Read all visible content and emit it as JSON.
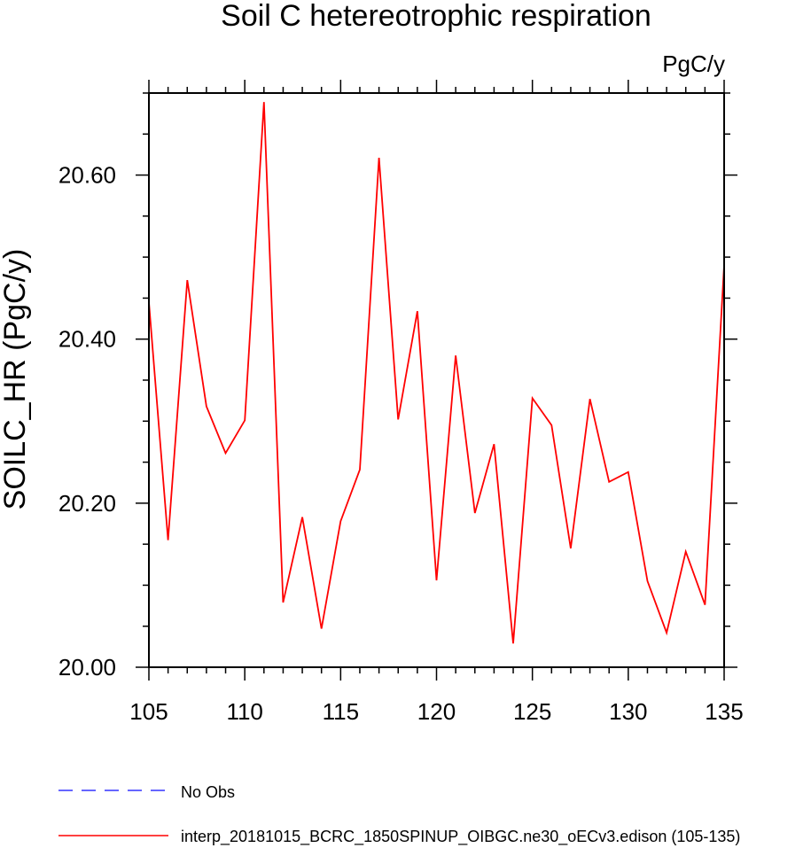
{
  "chart_data": {
    "type": "line",
    "title": "Soil C hetereotrophic respiration",
    "units": "PgC/y",
    "ylabel": "SOILC_HR  (PgC/y)",
    "xlabel": "",
    "xlim": [
      105,
      135
    ],
    "ylim": [
      20.0,
      20.7
    ],
    "x_ticks": [
      105,
      110,
      115,
      120,
      125,
      130,
      135
    ],
    "x_tick_labels": [
      "105",
      "110",
      "115",
      "120",
      "125",
      "130",
      "135"
    ],
    "y_ticks": [
      20.0,
      20.2,
      20.4,
      20.6
    ],
    "y_tick_labels": [
      "20.00",
      "20.20",
      "20.40",
      "20.60"
    ],
    "grid": false,
    "legend_position": "bottom",
    "series": [
      {
        "name": "interp_20181015_BCRC_1850SPINUP_OIBGC.ne30_oECv3.edison (105-135)",
        "color": "#ff0000",
        "style": "solid",
        "x": [
          105,
          106,
          107,
          108,
          109,
          110,
          111,
          112,
          113,
          114,
          115,
          116,
          117,
          118,
          119,
          120,
          121,
          122,
          123,
          124,
          125,
          126,
          127,
          128,
          129,
          130,
          131,
          132,
          133,
          134,
          135
        ],
        "values": [
          20.445,
          20.155,
          20.472,
          20.318,
          20.261,
          20.301,
          20.689,
          20.079,
          20.183,
          20.047,
          20.178,
          20.241,
          20.621,
          20.302,
          20.434,
          20.106,
          20.38,
          20.188,
          20.272,
          20.029,
          20.328,
          20.295,
          20.145,
          20.327,
          20.226,
          20.238,
          20.105,
          20.042,
          20.141,
          20.076,
          20.49
        ]
      }
    ],
    "legend": [
      {
        "label": "No Obs",
        "color": "#3333ff",
        "style": "dashed"
      },
      {
        "label": "interp_20181015_BCRC_1850SPINUP_OIBGC.ne30_oECv3.edison (105-135)",
        "color": "#ff0000",
        "style": "solid"
      }
    ]
  }
}
